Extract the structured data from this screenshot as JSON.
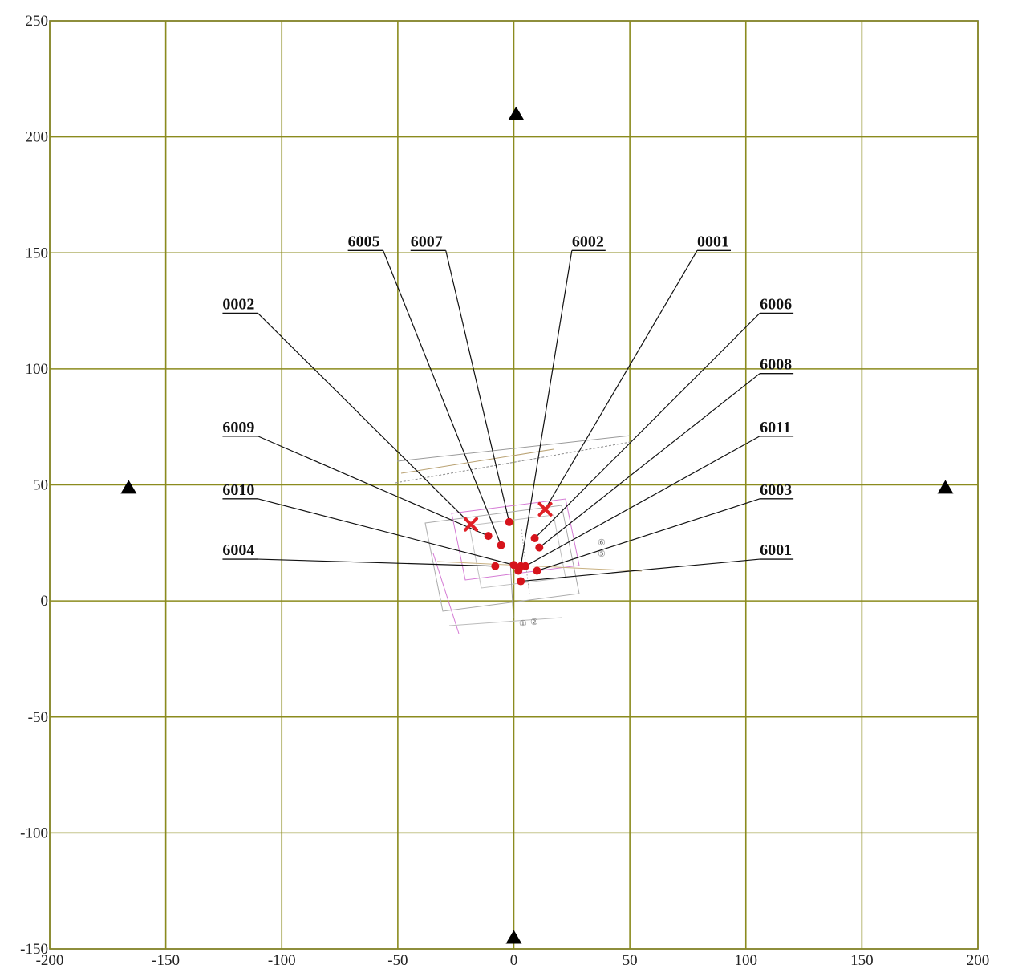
{
  "chart_data": {
    "type": "scatter",
    "xlim": [
      -200,
      200
    ],
    "ylim": [
      -150,
      250
    ],
    "grid": true,
    "x_ticks": [
      "-200",
      "-150",
      "-100",
      "-50",
      "0",
      "50",
      "100",
      "150",
      "200"
    ],
    "y_ticks": [
      "250",
      "200",
      "150",
      "100",
      "50",
      "0",
      "-50",
      "-100",
      "-150"
    ],
    "triangle_markers": [
      {
        "x": 1,
        "y": 210
      },
      {
        "x": -166,
        "y": 49
      },
      {
        "x": 186,
        "y": 49
      },
      {
        "x": 0,
        "y": -145
      }
    ],
    "x_markers": [
      {
        "x": -18.5,
        "y": 33
      },
      {
        "x": 13.5,
        "y": 39.5
      }
    ],
    "points": [
      {
        "id": "0001",
        "x": 13.5,
        "y": 39.5,
        "label_x": 79,
        "label_y": 151
      },
      {
        "id": "0002",
        "x": -18.5,
        "y": 33,
        "label_x": -111,
        "label_y": 124
      },
      {
        "id": "6001",
        "x": 3,
        "y": 8.5,
        "label_x": 106,
        "label_y": 18
      },
      {
        "id": "6002",
        "x": 3,
        "y": 15,
        "label_x": 25,
        "label_y": 151
      },
      {
        "id": "6003",
        "x": 10,
        "y": 13,
        "label_x": 106,
        "label_y": 44
      },
      {
        "id": "6004",
        "x": -8,
        "y": 15,
        "label_x": -111,
        "label_y": 18
      },
      {
        "id": "6005",
        "x": -5.5,
        "y": 24,
        "label_x": -57,
        "label_y": 151
      },
      {
        "id": "6006",
        "x": 9,
        "y": 27,
        "label_x": 106,
        "label_y": 124
      },
      {
        "id": "6007",
        "x": -2,
        "y": 34,
        "label_x": -30,
        "label_y": 151
      },
      {
        "id": "6008",
        "x": 11,
        "y": 23,
        "label_x": 106,
        "label_y": 98
      },
      {
        "id": "6009",
        "x": -11,
        "y": 28,
        "label_x": -111,
        "label_y": 71
      },
      {
        "id": "6010",
        "x": 0,
        "y": 15.5,
        "label_x": -111,
        "label_y": 44
      },
      {
        "id": "6011",
        "x": 5,
        "y": 15,
        "label_x": 106,
        "label_y": 71
      }
    ],
    "extra_points": [
      {
        "x": 2,
        "y": 13
      }
    ],
    "colors": {
      "grid": "#8b8b1e",
      "point": "#d6141c",
      "x_marker": "#e01f26",
      "triangle": "#000000",
      "leader": "#111111",
      "site_plan": "#9a9a9a",
      "site_plan_accent": "#d47ad4"
    }
  },
  "site_plan_fragments": [
    "⑥",
    "⑤",
    "①",
    "②"
  ]
}
